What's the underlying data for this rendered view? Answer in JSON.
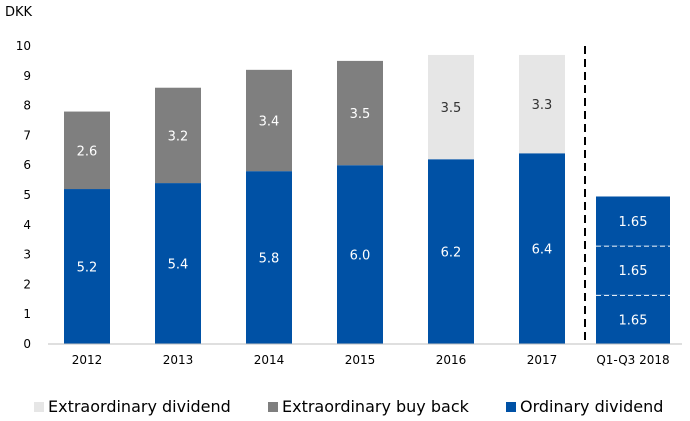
{
  "chart_data": {
    "type": "bar",
    "stacked": true,
    "ylabel": "DKK",
    "ylim": [
      0,
      10
    ],
    "yticks": [
      "0",
      "1",
      "2",
      "3",
      "4",
      "5",
      "6",
      "7",
      "8",
      "9",
      "10"
    ],
    "categories": [
      "2012",
      "2013",
      "2014",
      "2015",
      "2016",
      "2017",
      "Q1-Q3 2018"
    ],
    "series": [
      {
        "name": "Ordinary dividend",
        "color": "#0051a5",
        "values": [
          5.2,
          5.4,
          5.8,
          6.0,
          6.2,
          6.4,
          null
        ],
        "labels": [
          "5.2",
          "5.4",
          "5.8",
          "6.0",
          "6.2",
          "6.4",
          null
        ]
      },
      {
        "name": "Extraordinary buy back",
        "color": "#7f7f7f",
        "values": [
          2.6,
          3.2,
          3.4,
          3.5,
          null,
          null,
          null
        ],
        "labels": [
          "2.6",
          "3.2",
          "3.4",
          "3.5",
          null,
          null,
          null
        ]
      },
      {
        "name": "Extraordinary dividend",
        "color": "#e6e6e6",
        "values": [
          null,
          null,
          null,
          null,
          3.5,
          3.3,
          null
        ],
        "labels": [
          null,
          null,
          null,
          null,
          "3.5",
          "3.3",
          null
        ]
      }
    ],
    "quarterly": {
      "category": "Q1-Q3 2018",
      "series": "Ordinary dividend",
      "values": [
        1.65,
        1.65,
        1.65
      ],
      "labels": [
        "1.65",
        "1.65",
        "1.65"
      ]
    },
    "legend": [
      "Extraordinary dividend",
      "Extraordinary buy back",
      "Ordinary dividend"
    ],
    "legend_position": "bottom",
    "separator": "dashed vertical line before Q1-Q3 2018",
    "grid": false
  }
}
